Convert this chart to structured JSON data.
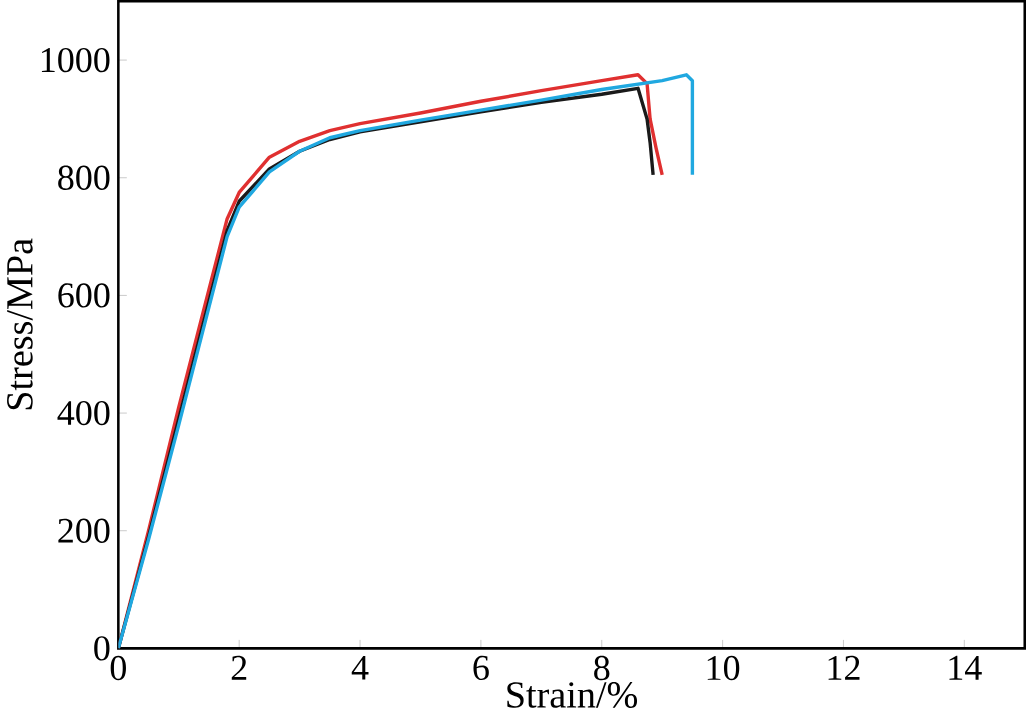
{
  "chart_data": {
    "type": "line",
    "xlabel": "Strain/%",
    "ylabel": "Stress/MPa",
    "xlim": [
      0,
      15
    ],
    "ylim": [
      0,
      1100
    ],
    "xticks": [
      0,
      2,
      4,
      6,
      8,
      10,
      12,
      14
    ],
    "yticks": [
      0,
      200,
      400,
      600,
      800,
      1000
    ],
    "marker": "none",
    "line_style": "solid",
    "series": [
      {
        "color": "#e03030",
        "x": [
          0,
          0.5,
          1,
          1.5,
          1.8,
          2,
          2.5,
          3,
          3.5,
          4,
          5,
          6,
          7,
          8,
          8.6,
          8.75,
          8.8,
          8.9,
          9.0
        ],
        "values": [
          0,
          200,
          410,
          610,
          730,
          775,
          835,
          862,
          880,
          892,
          910,
          930,
          948,
          965,
          975,
          960,
          900,
          850,
          805
        ]
      },
      {
        "color": "#1a1a1a",
        "x": [
          0,
          0.5,
          1,
          1.5,
          1.8,
          2,
          2.5,
          3,
          3.5,
          4,
          5,
          6,
          7,
          8,
          8.6,
          8.75,
          8.8,
          8.85
        ],
        "values": [
          0,
          190,
          390,
          590,
          710,
          760,
          815,
          845,
          865,
          878,
          895,
          912,
          928,
          942,
          952,
          900,
          860,
          805
        ]
      },
      {
        "color": "#20a8e0",
        "x": [
          0,
          0.5,
          1,
          1.5,
          1.8,
          2,
          2.5,
          3,
          3.5,
          4,
          5,
          6,
          7,
          8,
          9,
          9.4,
          9.5,
          9.5
        ],
        "values": [
          0,
          185,
          380,
          580,
          700,
          750,
          810,
          845,
          868,
          880,
          898,
          915,
          932,
          950,
          965,
          975,
          965,
          805
        ]
      }
    ]
  }
}
